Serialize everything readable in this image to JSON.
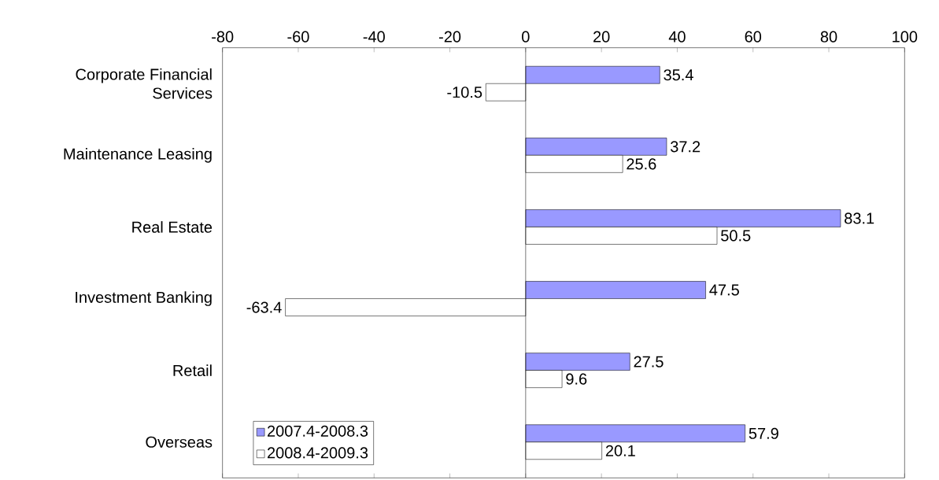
{
  "chart_data": {
    "type": "bar",
    "orientation": "horizontal",
    "categories": [
      "Corporate Financial Services",
      "Maintenance Leasing",
      "Real Estate",
      "Investment Banking",
      "Retail",
      "Overseas"
    ],
    "series": [
      {
        "name": "2007.4-2008.3",
        "color": "#9999ff",
        "values": [
          35.4,
          37.2,
          83.1,
          47.5,
          27.5,
          57.9
        ]
      },
      {
        "name": "2008.4-2009.3",
        "color": "#ffffff",
        "values": [
          -10.5,
          25.6,
          50.5,
          -63.4,
          9.6,
          20.1
        ]
      }
    ],
    "xlim": [
      -80,
      100
    ],
    "xticks": [
      -80,
      -60,
      -40,
      -20,
      0,
      20,
      40,
      60,
      80,
      100
    ],
    "ref_lines": [
      {
        "axis": "x",
        "value": 0,
        "color": "#000000"
      }
    ],
    "data_labels": true,
    "legend": "bottom left",
    "grid": false
  }
}
